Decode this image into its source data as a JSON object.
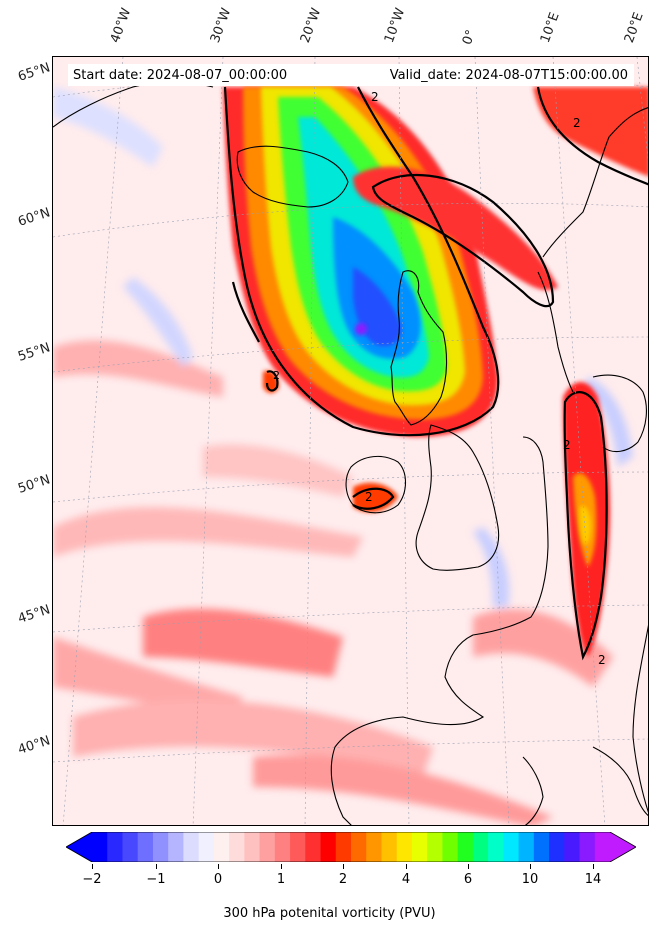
{
  "info": {
    "start_date": "Start date: 2024-08-07_00:00:00",
    "valid_date": "Valid_date: 2024-08-07T15:00:00.00"
  },
  "longitude_labels": [
    "40°W",
    "30°W",
    "20°W",
    "10°W",
    "0°",
    "10°E",
    "20°E"
  ],
  "latitude_labels": [
    "65°N",
    "60°N",
    "55°N",
    "50°N",
    "45°N",
    "40°N"
  ],
  "contour_label": "2",
  "colorbar": {
    "label": "300 hPa potenital vorticity (PVU)",
    "tick_labels": [
      "−2",
      "−1",
      "0",
      "1",
      "2",
      "4",
      "6",
      "10",
      "14"
    ],
    "colors": [
      "#0000ff",
      "#2828ff",
      "#4848ff",
      "#6e6eff",
      "#9090ff",
      "#b4b4ff",
      "#dcdcff",
      "#f0f0ff",
      "#fff0f0",
      "#ffdcdc",
      "#ffc0c0",
      "#ffa0a0",
      "#ff8080",
      "#ff5a5a",
      "#ff3030",
      "#ff0000",
      "#ff3a00",
      "#ff6a00",
      "#ff9600",
      "#ffc000",
      "#ffe600",
      "#e8ff00",
      "#b4ff00",
      "#70ff00",
      "#20ff20",
      "#00ff80",
      "#00ffc8",
      "#00e8ff",
      "#00b4ff",
      "#0070ff",
      "#1e30ff",
      "#4a1aff",
      "#8a1aff",
      "#c01aff"
    ]
  },
  "field": {
    "name": "300 hPa potential vorticity",
    "units": "PVU"
  }
}
